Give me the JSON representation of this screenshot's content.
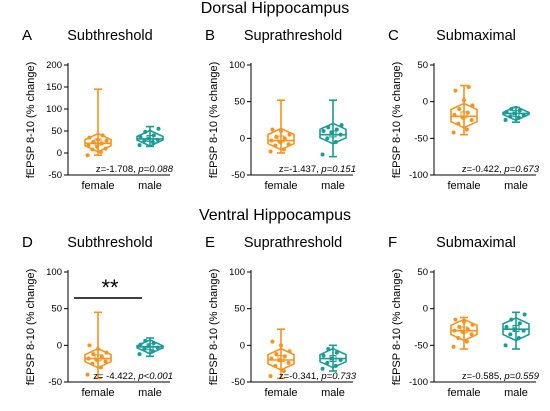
{
  "figure": {
    "row_titles": [
      "Dorsal Hippocampus",
      "Ventral Hippocampus"
    ]
  },
  "colors": {
    "female": "#f7931e",
    "male": "#1a9b97"
  },
  "chart_data": [
    {
      "letter": "A",
      "title": "Subthreshold",
      "type": "box",
      "ylabel": "fEPSP 8-10 (% change)",
      "ylim": [
        -50,
        200
      ],
      "yticks": [
        -50,
        0,
        50,
        100,
        150,
        200
      ],
      "categories": [
        "female",
        "male"
      ],
      "series": [
        {
          "name": "female",
          "min": -5,
          "q1": 12,
          "median": 22,
          "q3": 35,
          "max": 145,
          "mean": 25,
          "points": [
            -5,
            2,
            8,
            10,
            14,
            18,
            22,
            25,
            28,
            30,
            35,
            40
          ]
        },
        {
          "name": "male",
          "min": 15,
          "q1": 25,
          "median": 32,
          "q3": 42,
          "max": 60,
          "mean": 33,
          "points": [
            18,
            25,
            28,
            30,
            33,
            36,
            40,
            48,
            55
          ]
        }
      ],
      "stat_text": {
        "z": "z=-1.708, ",
        "p": "p=0.088"
      }
    },
    {
      "letter": "B",
      "title": "Suprathreshold",
      "type": "box",
      "ylabel": "fEPSP 8-10 (% change)",
      "ylim": [
        -50,
        100
      ],
      "yticks": [
        -50,
        0,
        50,
        100
      ],
      "categories": [
        "female",
        "male"
      ],
      "series": [
        {
          "name": "female",
          "min": -20,
          "q1": -10,
          "median": -3,
          "q3": 8,
          "max": 52,
          "mean": -1,
          "points": [
            -18,
            -15,
            -10,
            -8,
            -5,
            -3,
            0,
            2,
            5,
            10,
            12
          ]
        },
        {
          "name": "male",
          "min": -25,
          "q1": -2,
          "median": 5,
          "q3": 15,
          "max": 52,
          "mean": 6,
          "points": [
            -22,
            -5,
            0,
            5,
            8,
            10,
            12,
            15,
            18
          ]
        }
      ],
      "stat_text": {
        "z": "z=-1.437, ",
        "p": "p=0.151"
      }
    },
    {
      "letter": "C",
      "title": "Submaximal",
      "type": "box",
      "ylabel": "fEPSP 8-10 (% change)",
      "ylim": [
        -100,
        50
      ],
      "yticks": [
        -100,
        -50,
        0,
        50
      ],
      "categories": [
        "female",
        "male"
      ],
      "series": [
        {
          "name": "female",
          "min": -45,
          "q1": -30,
          "median": -20,
          "q3": -8,
          "max": 22,
          "mean": -18,
          "points": [
            -42,
            -38,
            -30,
            -25,
            -22,
            -18,
            -15,
            -10,
            -5,
            2,
            15,
            20
          ]
        },
        {
          "name": "male",
          "min": -28,
          "q1": -20,
          "median": -16,
          "q3": -12,
          "max": -8,
          "mean": -16,
          "points": [
            -25,
            -22,
            -20,
            -18,
            -16,
            -14,
            -12,
            -10
          ]
        }
      ],
      "stat_text": {
        "z": "z=-0.422, ",
        "p": "p=0.673"
      }
    },
    {
      "letter": "D",
      "title": "Subthreshold",
      "type": "box",
      "ylabel": "fEPSP 8-10 (% change)",
      "ylim": [
        -50,
        100
      ],
      "yticks": [
        -50,
        0,
        50,
        100
      ],
      "categories": [
        "female",
        "male"
      ],
      "series": [
        {
          "name": "female",
          "min": -45,
          "q1": -25,
          "median": -18,
          "q3": -10,
          "max": 45,
          "mean": -17,
          "points": [
            -40,
            -30,
            -25,
            -22,
            -20,
            -18,
            -15,
            -12,
            -10,
            -5,
            0
          ]
        },
        {
          "name": "male",
          "min": -15,
          "q1": -6,
          "median": -2,
          "q3": 2,
          "max": 10,
          "mean": -2,
          "points": [
            -12,
            -8,
            -5,
            -3,
            -1,
            1,
            3,
            6
          ]
        }
      ],
      "significance": "**",
      "stat_text": {
        "z": "z= -4.422, ",
        "p": "p<0.001"
      }
    },
    {
      "letter": "E",
      "title": "Suprathreshold",
      "type": "box",
      "ylabel": "fEPSP 8-10 (% change)",
      "ylim": [
        -50,
        100
      ],
      "yticks": [
        -50,
        0,
        50,
        100
      ],
      "categories": [
        "female",
        "male"
      ],
      "series": [
        {
          "name": "female",
          "min": -45,
          "q1": -28,
          "median": -20,
          "q3": -10,
          "max": 22,
          "mean": -18,
          "points": [
            -42,
            -35,
            -28,
            -24,
            -20,
            -18,
            -15,
            -12,
            -8,
            0,
            5
          ]
        },
        {
          "name": "male",
          "min": -35,
          "q1": -25,
          "median": -18,
          "q3": -10,
          "max": 0,
          "mean": -18,
          "points": [
            -32,
            -28,
            -24,
            -20,
            -18,
            -14,
            -10,
            -5
          ]
        }
      ],
      "stat_text": {
        "z": "z=-0.341, ",
        "p": "p=0.733"
      }
    },
    {
      "letter": "F",
      "title": "Submaximal",
      "type": "box",
      "ylabel": "fEPSP 8-10 (% change)",
      "ylim": [
        -100,
        50
      ],
      "yticks": [
        -100,
        -50,
        0,
        50
      ],
      "categories": [
        "female",
        "male"
      ],
      "series": [
        {
          "name": "female",
          "min": -55,
          "q1": -38,
          "median": -30,
          "q3": -20,
          "max": -12,
          "mean": -29,
          "points": [
            -52,
            -45,
            -40,
            -35,
            -32,
            -30,
            -28,
            -25,
            -22,
            -18,
            -15
          ]
        },
        {
          "name": "male",
          "min": -55,
          "q1": -38,
          "median": -28,
          "q3": -18,
          "max": -5,
          "mean": -27,
          "points": [
            -50,
            -40,
            -35,
            -30,
            -28,
            -25,
            -20,
            -15,
            -8
          ]
        }
      ],
      "stat_text": {
        "z": "z=-0.585, ",
        "p": "p=0.559"
      }
    }
  ]
}
